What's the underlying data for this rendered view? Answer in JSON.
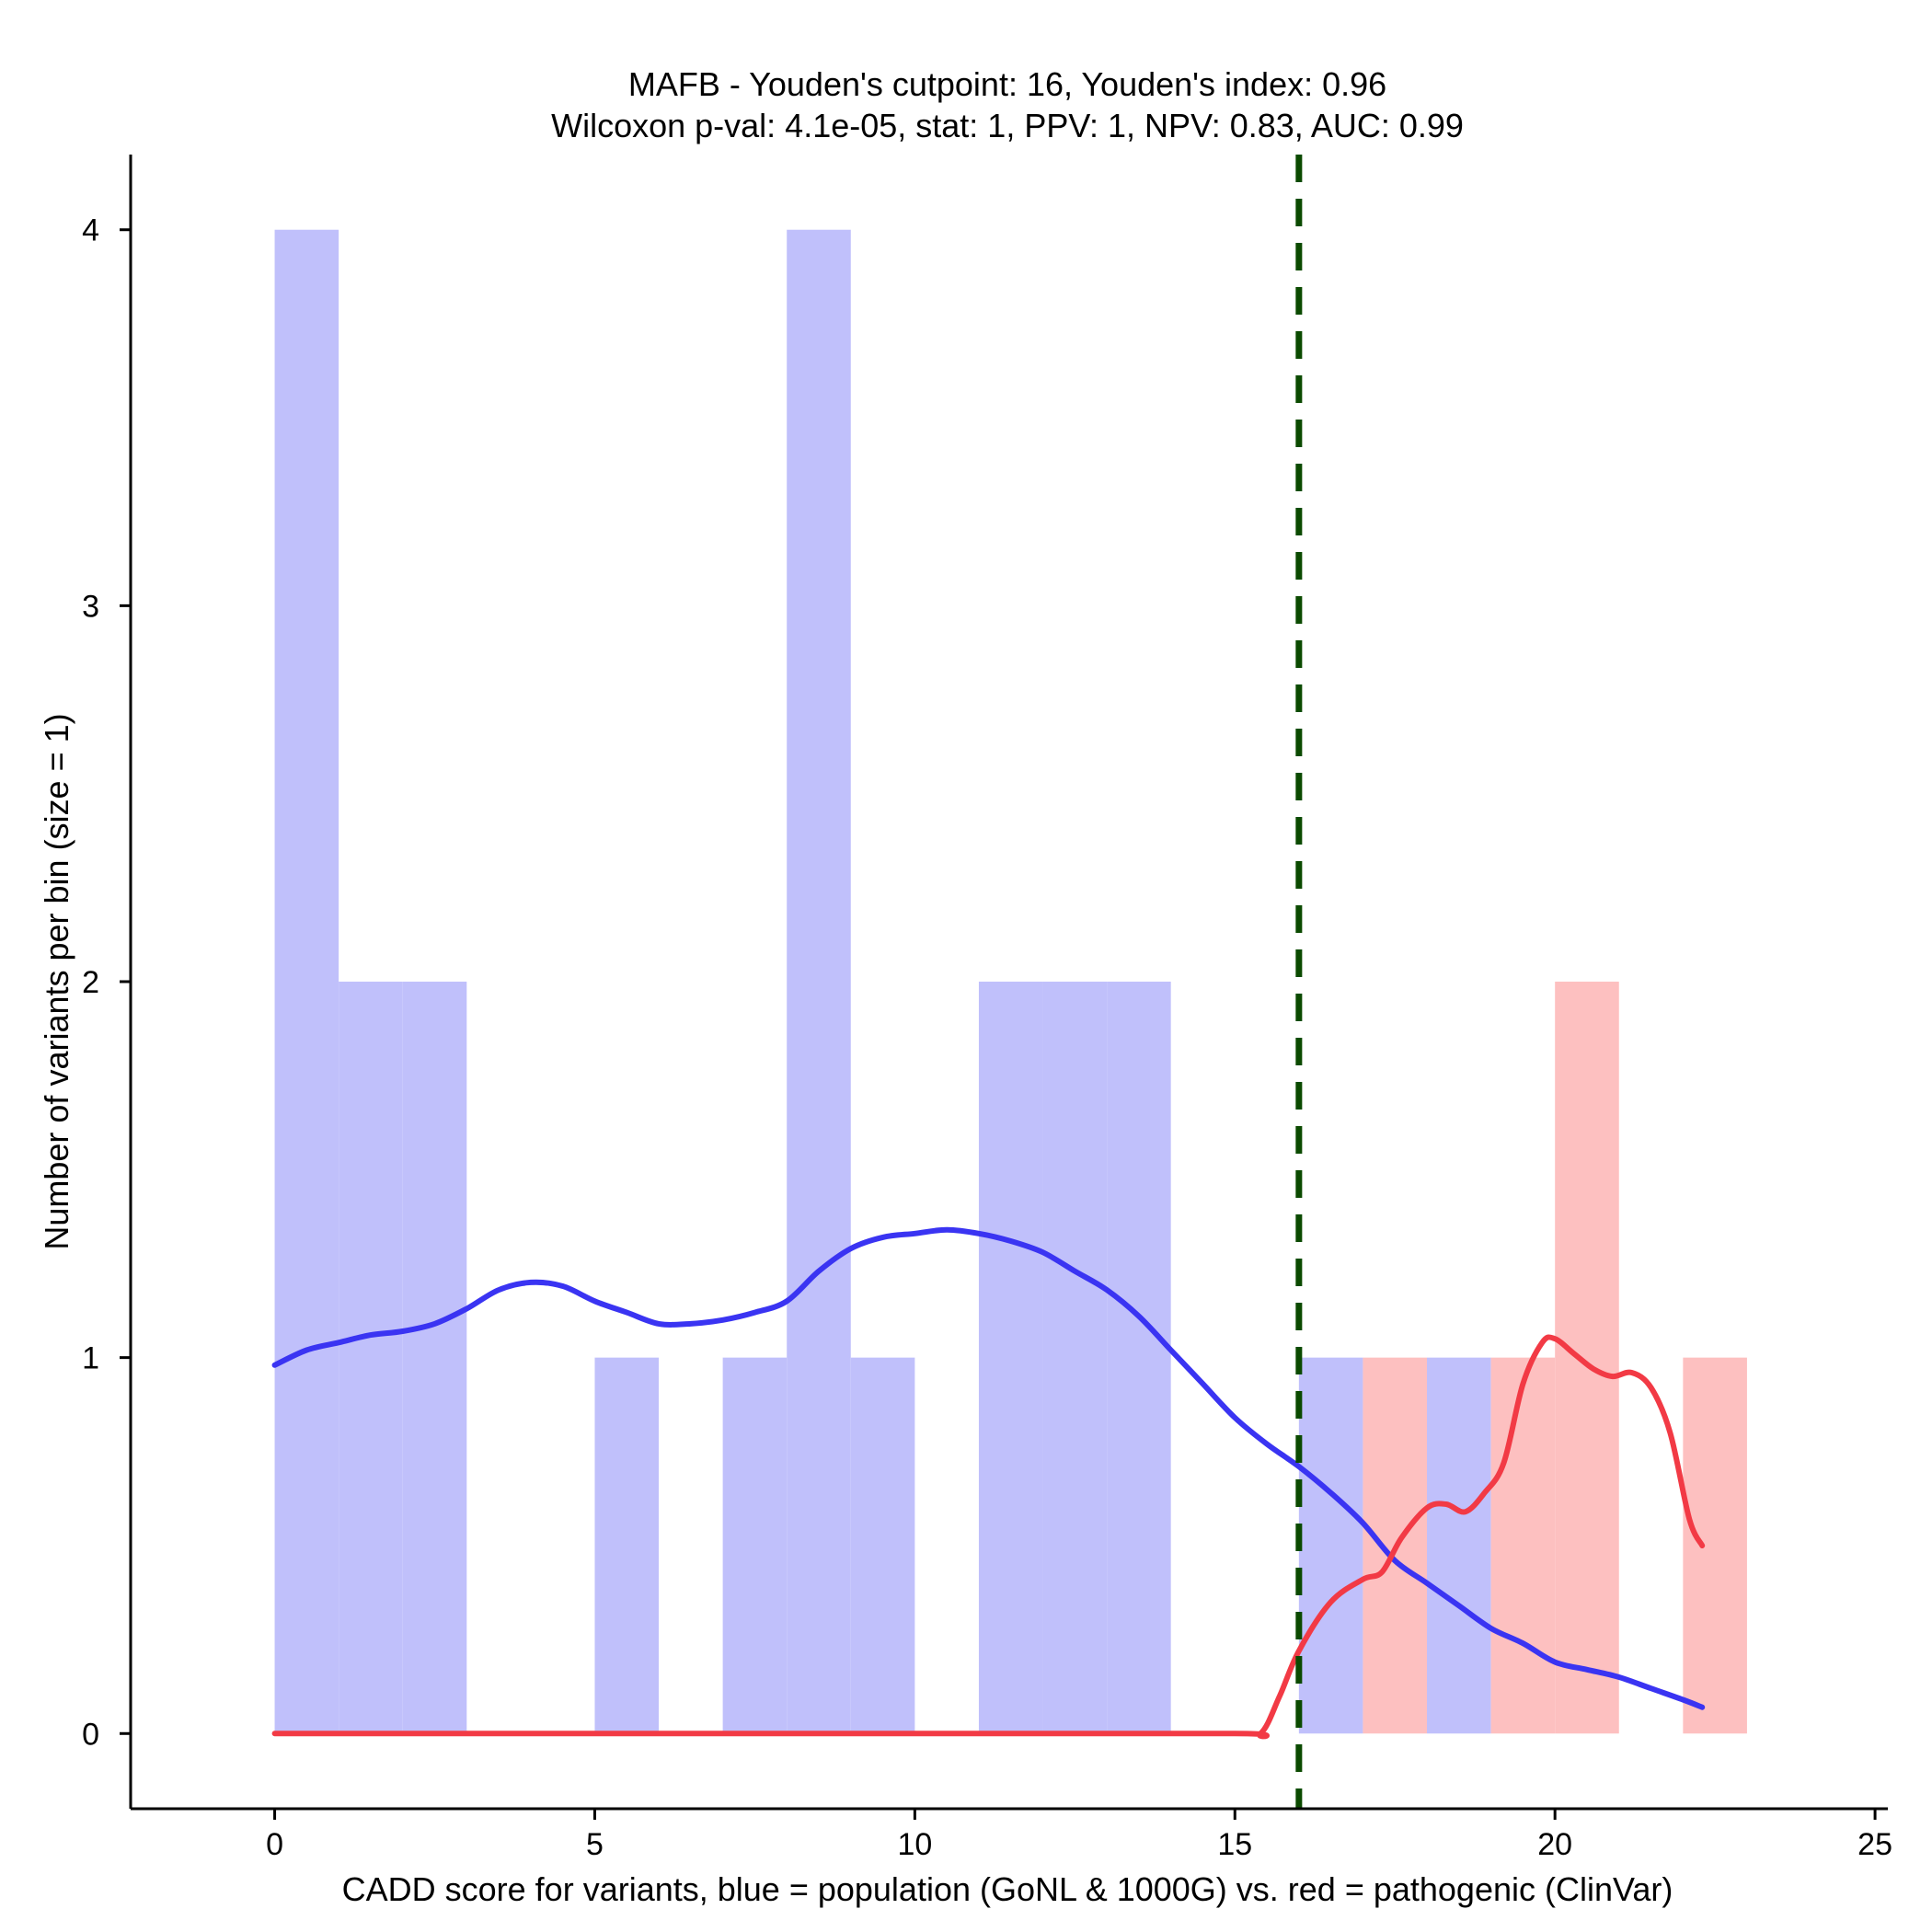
{
  "chart_data": {
    "type": "bar",
    "title": "MAFB - Youden's cutpoint: 16, Youden's index: 0.96",
    "subtitle": "Wilcoxon p-val: 4.1e-05, stat: 1, PPV: 1, NPV: 0.83, AUC: 0.99",
    "xlabel": "CADD score for variants, blue = population (GoNL & 1000G) vs. red = pathogenic (ClinVar)",
    "ylabel": "Number of variants per bin (size = 1)",
    "xlim": [
      -2.25,
      25.2
    ],
    "ylim": [
      -0.2,
      4.2
    ],
    "xticks": [
      0,
      5,
      10,
      15,
      20,
      25
    ],
    "yticks": [
      0,
      1,
      2,
      3,
      4
    ],
    "bin_width": 1,
    "cutpoint": 16,
    "cutpoint_color": "#0b4a00",
    "series": [
      {
        "name": "population (GoNL & 1000G)",
        "bar_color": "#c0c0fb",
        "line_color": "#3a34f2",
        "bin_starts": [
          0,
          1,
          2,
          5,
          7,
          8,
          9,
          11,
          12,
          13,
          16,
          18
        ],
        "values": [
          4,
          2,
          2,
          1,
          1,
          4,
          1,
          2,
          2,
          2,
          1,
          1
        ],
        "density_x": [
          0,
          0.5,
          1,
          1.5,
          2,
          2.5,
          3,
          3.5,
          4,
          4.5,
          5,
          5.5,
          6,
          6.5,
          7,
          7.5,
          8,
          8.5,
          9,
          9.5,
          10,
          10.5,
          11,
          11.5,
          12,
          12.5,
          13,
          13.5,
          14,
          14.5,
          15,
          15.5,
          16,
          16.5,
          17,
          17.5,
          18,
          18.5,
          19,
          19.5,
          20,
          20.5,
          21,
          21.5,
          22,
          22.3
        ],
        "density_y": [
          0.98,
          1.02,
          1.04,
          1.06,
          1.07,
          1.09,
          1.13,
          1.18,
          1.2,
          1.19,
          1.15,
          1.12,
          1.09,
          1.09,
          1.1,
          1.12,
          1.15,
          1.23,
          1.29,
          1.32,
          1.33,
          1.34,
          1.33,
          1.31,
          1.28,
          1.23,
          1.18,
          1.11,
          1.02,
          0.93,
          0.84,
          0.77,
          0.71,
          0.64,
          0.56,
          0.46,
          0.4,
          0.34,
          0.28,
          0.24,
          0.19,
          0.17,
          0.15,
          0.12,
          0.09,
          0.07
        ]
      },
      {
        "name": "pathogenic (ClinVar)",
        "bar_color": "#fdc0c0",
        "line_color": "#f23a45",
        "bin_starts": [
          17,
          19,
          20,
          22
        ],
        "values": [
          1,
          1,
          2,
          1
        ],
        "density_x": [
          0,
          5,
          10,
          15,
          15.4,
          15.7,
          16,
          16.5,
          17,
          17.3,
          17.6,
          18,
          18.3,
          18.6,
          18.9,
          19.2,
          19.5,
          19.8,
          20,
          20.3,
          20.6,
          20.9,
          21.2,
          21.5,
          21.8,
          22.1,
          22.3
        ],
        "density_y": [
          0,
          0,
          0,
          0,
          0,
          0.1,
          0.22,
          0.35,
          0.41,
          0.43,
          0.52,
          0.6,
          0.61,
          0.59,
          0.64,
          0.72,
          0.93,
          1.04,
          1.05,
          1.01,
          0.97,
          0.95,
          0.96,
          0.92,
          0.8,
          0.57,
          0.5
        ]
      }
    ]
  }
}
